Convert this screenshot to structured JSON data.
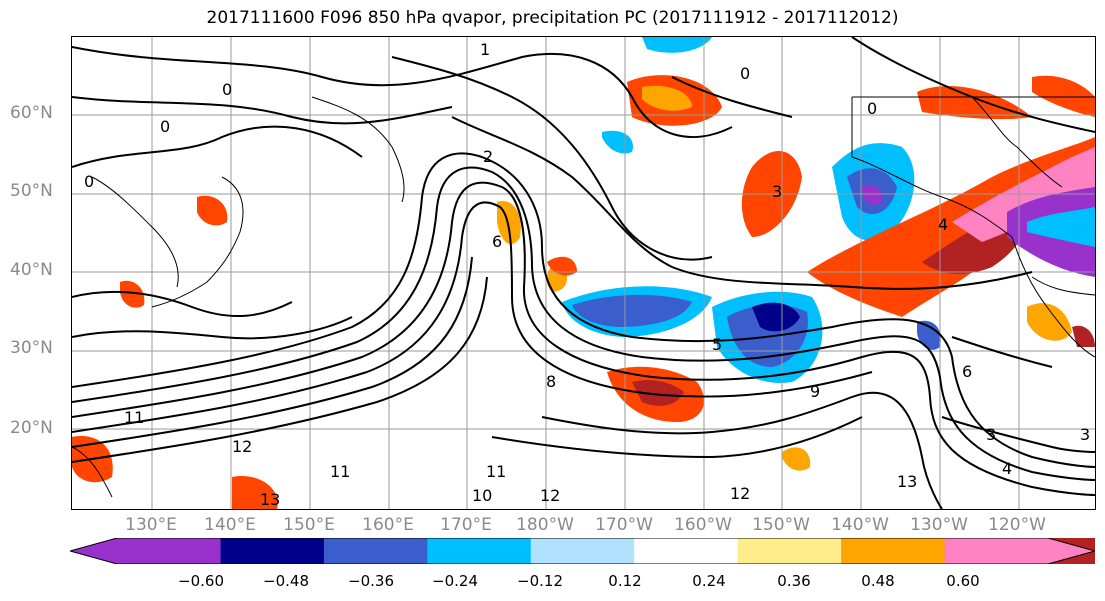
{
  "title": "2017111600 F096 850 hPa qvapor, precipitation PC (2017111912 - 2017112012)",
  "lat_labels": [
    "60°N",
    "50°N",
    "40°N",
    "30°N",
    "20°N"
  ],
  "lon_labels": [
    "130°E",
    "140°E",
    "150°E",
    "160°E",
    "170°E",
    "180°W",
    "170°W",
    "160°W",
    "150°W",
    "140°W",
    "130°W",
    "120°W"
  ],
  "colorbar": {
    "colors": [
      "#9932cc",
      "#00008b",
      "#3a5fcd",
      "#00bfff",
      "#b0e2ff",
      "#ffffff",
      "#ffec8b",
      "#ffa500",
      "#ff4500",
      "#b22222",
      "#ff83c3"
    ],
    "tick_labels": [
      "−0.60",
      "−0.48",
      "−0.36",
      "−0.24",
      "−0.12",
      "0.12",
      "0.24",
      "0.36",
      "0.48",
      "0.60"
    ]
  },
  "contour_labels": [
    "1",
    "0",
    "0",
    "0",
    "0",
    "0",
    "2",
    "3",
    "4",
    "5",
    "6",
    "6",
    "8",
    "9",
    "10",
    "11",
    "11",
    "11",
    "12",
    "12",
    "12",
    "13",
    "13",
    "3",
    "3",
    "4"
  ]
}
